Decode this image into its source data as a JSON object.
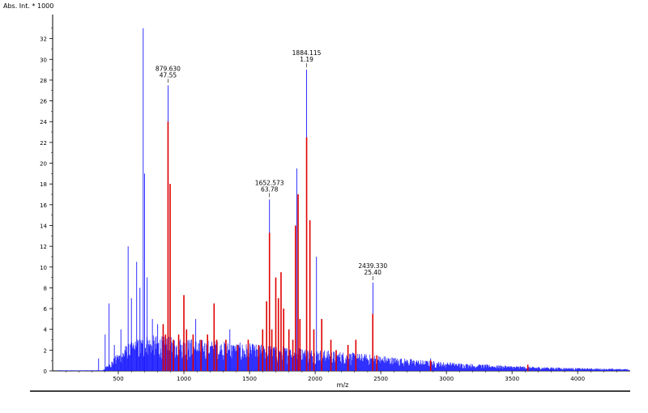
{
  "chart_data": {
    "type": "line",
    "ylabel": "Abs. Int. * 1000",
    "xlabel": "m/z",
    "xlim": [
      0,
      4400
    ],
    "ylim": [
      0,
      34
    ],
    "x_ticks": [
      500,
      1000,
      1500,
      2000,
      2500,
      3000,
      3500,
      4000
    ],
    "y_ticks": [
      0,
      2,
      4,
      6,
      8,
      10,
      12,
      14,
      16,
      18,
      20,
      22,
      24,
      26,
      28,
      30,
      32
    ],
    "grid": false,
    "colors": {
      "spectrum": "#1a1aff",
      "matched_peaks": "#e00000",
      "axis": "#000000"
    },
    "spectrum_peaks": [
      {
        "x": 350,
        "y": 1.2
      },
      {
        "x": 400,
        "y": 3.5
      },
      {
        "x": 430,
        "y": 6.5
      },
      {
        "x": 470,
        "y": 2.5
      },
      {
        "x": 520,
        "y": 4.0
      },
      {
        "x": 550,
        "y": 2.0
      },
      {
        "x": 575,
        "y": 12.0
      },
      {
        "x": 600,
        "y": 7.0
      },
      {
        "x": 640,
        "y": 10.5
      },
      {
        "x": 665,
        "y": 8.0
      },
      {
        "x": 690,
        "y": 33.0
      },
      {
        "x": 700,
        "y": 19.0
      },
      {
        "x": 720,
        "y": 9.0
      },
      {
        "x": 760,
        "y": 5.0
      },
      {
        "x": 800,
        "y": 4.5
      },
      {
        "x": 880,
        "y": 27.5
      },
      {
        "x": 1090,
        "y": 5.0
      },
      {
        "x": 1350,
        "y": 4.0
      },
      {
        "x": 1652,
        "y": 16.5
      },
      {
        "x": 1860,
        "y": 19.5
      },
      {
        "x": 1935,
        "y": 29.0
      },
      {
        "x": 2010,
        "y": 11.0
      },
      {
        "x": 2440,
        "y": 8.5
      },
      {
        "x": 2880,
        "y": 1.2
      }
    ],
    "matched_peaks": [
      {
        "x": 842,
        "y": 4.5
      },
      {
        "x": 860,
        "y": 3.5
      },
      {
        "x": 879,
        "y": 24.0
      },
      {
        "x": 895,
        "y": 18.0
      },
      {
        "x": 920,
        "y": 3.0
      },
      {
        "x": 960,
        "y": 3.5
      },
      {
        "x": 1000,
        "y": 7.3
      },
      {
        "x": 1020,
        "y": 4.0
      },
      {
        "x": 1070,
        "y": 3.5
      },
      {
        "x": 1130,
        "y": 3.0
      },
      {
        "x": 1180,
        "y": 3.5
      },
      {
        "x": 1230,
        "y": 6.5
      },
      {
        "x": 1250,
        "y": 3.0
      },
      {
        "x": 1320,
        "y": 3.0
      },
      {
        "x": 1410,
        "y": 2.5
      },
      {
        "x": 1490,
        "y": 3.0
      },
      {
        "x": 1570,
        "y": 2.5
      },
      {
        "x": 1600,
        "y": 4.0
      },
      {
        "x": 1630,
        "y": 6.7
      },
      {
        "x": 1652,
        "y": 13.3
      },
      {
        "x": 1670,
        "y": 4.0
      },
      {
        "x": 1700,
        "y": 9.0
      },
      {
        "x": 1720,
        "y": 7.0
      },
      {
        "x": 1740,
        "y": 9.5
      },
      {
        "x": 1760,
        "y": 6.0
      },
      {
        "x": 1800,
        "y": 4.0
      },
      {
        "x": 1830,
        "y": 3.0
      },
      {
        "x": 1850,
        "y": 14.0
      },
      {
        "x": 1870,
        "y": 17.0
      },
      {
        "x": 1884,
        "y": 5.0
      },
      {
        "x": 1935,
        "y": 22.5
      },
      {
        "x": 1960,
        "y": 14.5
      },
      {
        "x": 1990,
        "y": 4.0
      },
      {
        "x": 2050,
        "y": 5.0
      },
      {
        "x": 2120,
        "y": 3.0
      },
      {
        "x": 2160,
        "y": 2.0
      },
      {
        "x": 2250,
        "y": 2.5
      },
      {
        "x": 2310,
        "y": 3.0
      },
      {
        "x": 2439,
        "y": 5.5
      },
      {
        "x": 2470,
        "y": 1.5
      },
      {
        "x": 2880,
        "y": 1.0
      },
      {
        "x": 3620,
        "y": 0.6
      }
    ],
    "annotations": [
      {
        "mz": "879.630",
        "score": "47.55",
        "x": 879,
        "y": 27.5
      },
      {
        "mz": "1652.573",
        "score": "63.78",
        "x": 1652,
        "y": 16.5
      },
      {
        "mz": "1884.115",
        "score": "1.19",
        "x": 1935,
        "y": 29.0
      },
      {
        "mz": "2439.330",
        "score": "25.40",
        "x": 2439,
        "y": 8.5
      }
    ]
  }
}
